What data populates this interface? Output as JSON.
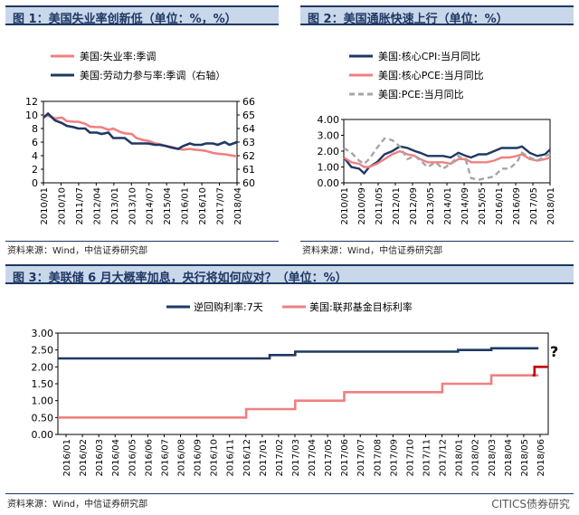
{
  "chart_data": [
    {
      "id": "fig1",
      "type": "line",
      "title": "图 1：美国失业率创新低（单位：%，%）",
      "source": "资料来源：Wind，中信证券研究部",
      "ylim_left": [
        0,
        12
      ],
      "yticks_left": [
        0,
        2,
        4,
        6,
        8,
        10,
        12
      ],
      "ylim_right": [
        60,
        66
      ],
      "yticks_right": [
        60,
        61,
        62,
        63,
        64,
        65,
        66
      ],
      "xlim": [
        2010.0,
        2018.33
      ],
      "xticks": [
        "2010/01",
        "2010/10",
        "2011/07",
        "2012/04",
        "2013/01",
        "2013/10",
        "2014/07",
        "2015/04",
        "2016/01",
        "2016/10",
        "2017/07",
        "2018/04"
      ],
      "series": [
        {
          "name": "美国:失业率:季调",
          "color": "#f08080",
          "axis": "left",
          "x": [
            2010.0,
            2010.2,
            2010.5,
            2010.8,
            2011.0,
            2011.3,
            2011.5,
            2011.8,
            2012.0,
            2012.3,
            2012.5,
            2012.8,
            2013.0,
            2013.3,
            2013.5,
            2013.8,
            2014.0,
            2014.3,
            2014.5,
            2014.8,
            2015.0,
            2015.3,
            2015.5,
            2015.8,
            2016.0,
            2016.3,
            2016.5,
            2016.8,
            2017.0,
            2017.3,
            2017.5,
            2017.8,
            2018.0,
            2018.33
          ],
          "y": [
            9.8,
            9.9,
            9.5,
            9.6,
            9.1,
            9.0,
            9.0,
            8.7,
            8.3,
            8.2,
            8.2,
            7.8,
            8.0,
            7.5,
            7.3,
            7.2,
            6.6,
            6.3,
            6.2,
            5.8,
            5.7,
            5.4,
            5.3,
            5.0,
            4.9,
            5.0,
            4.9,
            4.8,
            4.7,
            4.4,
            4.3,
            4.2,
            4.1,
            3.9
          ]
        },
        {
          "name": "美国:劳动力参与率:季调（右轴）",
          "color": "#1f3864",
          "axis": "right",
          "x": [
            2010.0,
            2010.2,
            2010.5,
            2010.8,
            2011.0,
            2011.3,
            2011.5,
            2011.8,
            2012.0,
            2012.3,
            2012.5,
            2012.8,
            2013.0,
            2013.3,
            2013.5,
            2013.8,
            2014.0,
            2014.3,
            2014.5,
            2014.8,
            2015.0,
            2015.3,
            2015.5,
            2015.8,
            2016.0,
            2016.3,
            2016.5,
            2016.8,
            2017.0,
            2017.3,
            2017.5,
            2017.8,
            2018.0,
            2018.33
          ],
          "y": [
            64.8,
            65.1,
            64.6,
            64.4,
            64.2,
            64.1,
            64.0,
            64.0,
            63.7,
            63.7,
            63.6,
            63.7,
            63.3,
            63.3,
            63.3,
            62.9,
            62.9,
            62.9,
            62.9,
            62.8,
            62.8,
            62.7,
            62.6,
            62.5,
            62.7,
            62.9,
            62.8,
            62.8,
            62.9,
            62.9,
            62.8,
            63.0,
            62.8,
            63.0
          ]
        }
      ]
    },
    {
      "id": "fig2",
      "type": "line",
      "title": "图 2：美国通胀快速上行（单位：%）",
      "source": "资料来源：Wind，中信证券研究部",
      "ylim": [
        0,
        4
      ],
      "yticks": [
        "0.00",
        "1.00",
        "2.00",
        "3.00",
        "4.00"
      ],
      "xlim": [
        2010.0,
        2018.1
      ],
      "xticks": [
        "2010/01",
        "2010/09",
        "2011/05",
        "2012/01",
        "2012/09",
        "2013/05",
        "2014/01",
        "2014/09",
        "2015/05",
        "2016/01",
        "2016/09",
        "2017/05",
        "2018/01"
      ],
      "series": [
        {
          "name": "美国:核心CPI:当月同比",
          "color": "#1f3864",
          "dash": "",
          "x": [
            2010.0,
            2010.3,
            2010.6,
            2010.8,
            2011.0,
            2011.3,
            2011.6,
            2011.9,
            2012.2,
            2012.5,
            2012.8,
            2013.0,
            2013.3,
            2013.6,
            2013.9,
            2014.2,
            2014.5,
            2014.8,
            2015.0,
            2015.3,
            2015.6,
            2015.9,
            2016.2,
            2016.5,
            2016.8,
            2017.0,
            2017.3,
            2017.6,
            2017.9,
            2018.1
          ],
          "y": [
            1.6,
            1.0,
            0.9,
            0.6,
            1.0,
            1.3,
            1.8,
            2.0,
            2.3,
            2.2,
            2.0,
            1.9,
            1.7,
            1.7,
            1.7,
            1.6,
            1.9,
            1.7,
            1.6,
            1.8,
            1.8,
            2.0,
            2.2,
            2.2,
            2.2,
            2.3,
            1.9,
            1.7,
            1.8,
            2.1
          ]
        },
        {
          "name": "美国:核心PCE:当月同比",
          "color": "#f08080",
          "dash": "",
          "x": [
            2010.0,
            2010.3,
            2010.6,
            2010.8,
            2011.0,
            2011.3,
            2011.6,
            2011.9,
            2012.2,
            2012.5,
            2012.8,
            2013.0,
            2013.3,
            2013.6,
            2013.9,
            2014.2,
            2014.5,
            2014.8,
            2015.0,
            2015.3,
            2015.6,
            2015.9,
            2016.2,
            2016.5,
            2016.8,
            2017.0,
            2017.3,
            2017.6,
            2017.9,
            2018.1
          ],
          "y": [
            1.6,
            1.3,
            1.2,
            1.0,
            1.0,
            1.2,
            1.5,
            1.8,
            2.0,
            1.8,
            1.7,
            1.5,
            1.3,
            1.3,
            1.3,
            1.2,
            1.5,
            1.5,
            1.3,
            1.3,
            1.3,
            1.4,
            1.6,
            1.6,
            1.7,
            1.8,
            1.5,
            1.4,
            1.5,
            1.6
          ]
        },
        {
          "name": "美国:PCE:当月同比",
          "color": "#a6a6a6",
          "dash": "6,4",
          "x": [
            2010.0,
            2010.3,
            2010.6,
            2010.8,
            2011.0,
            2011.3,
            2011.6,
            2011.9,
            2012.2,
            2012.5,
            2012.8,
            2013.0,
            2013.3,
            2013.6,
            2013.9,
            2014.2,
            2014.5,
            2014.8,
            2015.0,
            2015.3,
            2015.6,
            2015.9,
            2016.2,
            2016.5,
            2016.8,
            2017.0,
            2017.3,
            2017.6,
            2017.9,
            2018.1
          ],
          "y": [
            2.2,
            1.9,
            1.4,
            1.2,
            1.5,
            2.2,
            2.8,
            2.7,
            2.3,
            1.5,
            1.7,
            1.4,
            1.0,
            1.3,
            0.9,
            1.2,
            1.7,
            1.4,
            0.3,
            0.2,
            0.3,
            0.4,
            0.9,
            0.9,
            1.3,
            1.9,
            1.6,
            1.4,
            1.7,
            1.8
          ]
        }
      ]
    },
    {
      "id": "fig3",
      "type": "line",
      "title": "图 3：美联储 6 月大概率加息，央行将如何应对？（单位：%）",
      "source": "资料来源：Wind，中信证券研究部",
      "ylim": [
        0,
        3
      ],
      "yticks": [
        "0.00",
        "0.50",
        "1.00",
        "1.50",
        "2.00",
        "2.50",
        "3.00"
      ],
      "xlim": [
        2016.0,
        2018.5
      ],
      "xticks": [
        "2016/01",
        "2016/02",
        "2016/03",
        "2016/04",
        "2016/05",
        "2016/06",
        "2016/07",
        "2016/08",
        "2016/09",
        "2016/10",
        "2016/11",
        "2016/12",
        "2017/01",
        "2017/02",
        "2017/03",
        "2017/04",
        "2017/05",
        "2017/06",
        "2017/07",
        "2017/08",
        "2017/09",
        "2017/10",
        "2017/11",
        "2017/12",
        "2018/01",
        "2018/02",
        "2018/03",
        "2018/04",
        "2018/05",
        "2018/06"
      ],
      "annotation": "?",
      "series": [
        {
          "name": "逆回购利率:7天",
          "color": "#1f3864",
          "step": true,
          "x": [
            2016.0,
            2017.08,
            2017.21,
            2018.04,
            2018.21,
            2018.45
          ],
          "y": [
            2.25,
            2.35,
            2.45,
            2.5,
            2.55,
            2.55
          ]
        },
        {
          "name": "美国:联邦基金目标利率",
          "color": "#f08080",
          "step": true,
          "x": [
            2016.0,
            2016.96,
            2017.21,
            2017.46,
            2017.96,
            2018.21,
            2018.42,
            2018.45
          ],
          "y": [
            0.5,
            0.75,
            1.0,
            1.25,
            1.5,
            1.75,
            1.75,
            1.75
          ]
        },
        {
          "name": "",
          "color": "#c00000",
          "step": true,
          "x": [
            2018.42,
            2018.43,
            2018.5
          ],
          "y": [
            1.75,
            2.0,
            2.0
          ]
        }
      ]
    }
  ],
  "watermark": "CITICS债券研究"
}
